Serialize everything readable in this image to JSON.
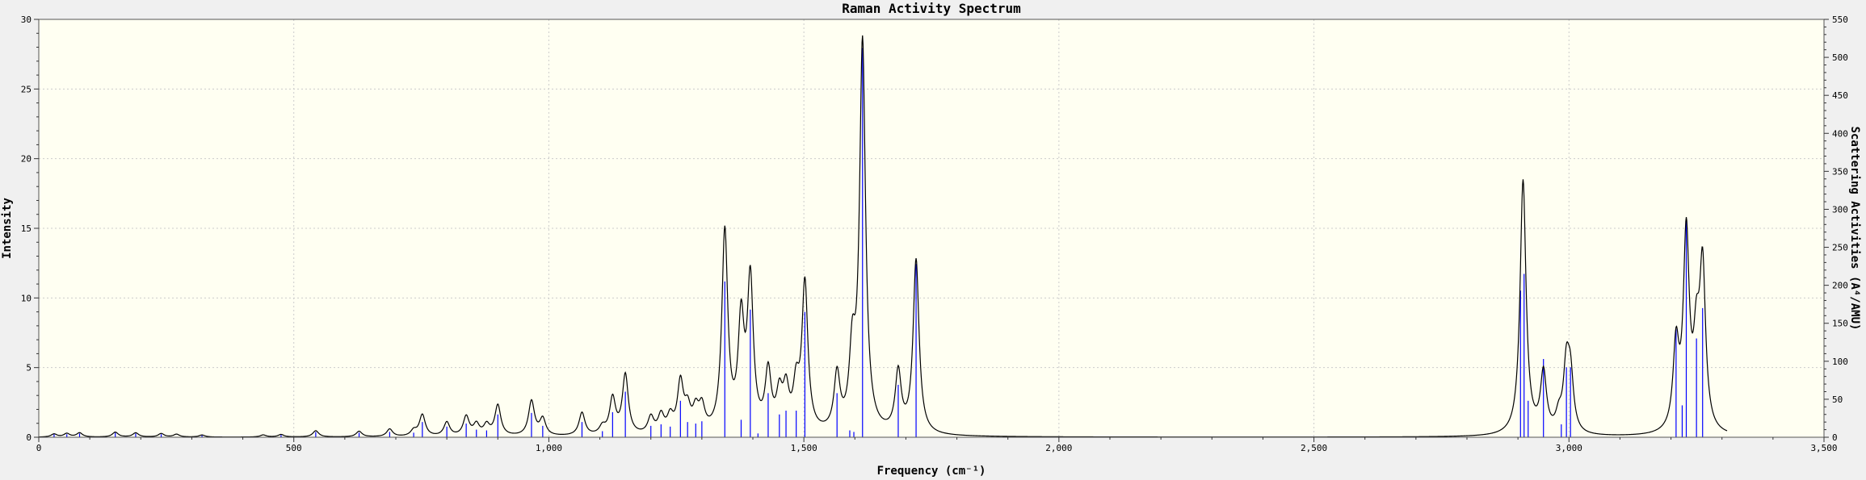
{
  "chart_data": {
    "type": "line",
    "title": "Raman Activity Spectrum",
    "xlabel": "Frequency (cm⁻¹)",
    "ylabel": "Intensity",
    "y2label": "Scattering Activities (A⁴/AMU)",
    "xlim": [
      0,
      3500
    ],
    "ylim": [
      0,
      30
    ],
    "y2lim": [
      0,
      550
    ],
    "x_ticks": [
      0,
      500,
      1000,
      1500,
      2000,
      2500,
      3000,
      3500
    ],
    "x_tick_labels": [
      "0",
      "500",
      "1,000",
      "1,500",
      "2,000",
      "2,500",
      "3,000",
      "3,500"
    ],
    "y_ticks": [
      0,
      5,
      10,
      15,
      20,
      25,
      30
    ],
    "y_tick_labels": [
      "0",
      "5",
      "10",
      "15",
      "20",
      "25",
      "30"
    ],
    "y2_ticks": [
      0,
      50,
      100,
      150,
      200,
      250,
      300,
      350,
      400,
      450,
      500,
      550
    ],
    "y2_tick_labels": [
      "0",
      "50",
      "100",
      "150",
      "200",
      "250",
      "300",
      "350",
      "400",
      "450",
      "500",
      "550"
    ],
    "grid": true,
    "colors": {
      "plot_background": "#fffff2",
      "spectrum_line": "#000000",
      "stick_lines": "#0000ff",
      "grid": "#cccccc",
      "page_background": "#f0f0f0"
    },
    "series": [
      {
        "kind": "broadened-spectrum",
        "axis": "left",
        "lorentzian_hwhm": 7,
        "peaks": [
          {
            "x": 30,
            "y": 0.22
          },
          {
            "x": 55,
            "y": 0.25
          },
          {
            "x": 80,
            "y": 0.3
          },
          {
            "x": 150,
            "y": 0.35
          },
          {
            "x": 190,
            "y": 0.3
          },
          {
            "x": 240,
            "y": 0.25
          },
          {
            "x": 270,
            "y": 0.2
          },
          {
            "x": 320,
            "y": 0.15
          },
          {
            "x": 440,
            "y": 0.15
          },
          {
            "x": 475,
            "y": 0.18
          },
          {
            "x": 543,
            "y": 0.45
          },
          {
            "x": 628,
            "y": 0.4
          },
          {
            "x": 688,
            "y": 0.55
          },
          {
            "x": 735,
            "y": 0.4
          },
          {
            "x": 752,
            "y": 1.55
          },
          {
            "x": 800,
            "y": 1.0
          },
          {
            "x": 838,
            "y": 1.4
          },
          {
            "x": 858,
            "y": 0.8
          },
          {
            "x": 878,
            "y": 0.75
          },
          {
            "x": 900,
            "y": 2.2
          },
          {
            "x": 966,
            "y": 2.5
          },
          {
            "x": 988,
            "y": 1.2
          },
          {
            "x": 1065,
            "y": 1.65
          },
          {
            "x": 1105,
            "y": 0.55
          },
          {
            "x": 1125,
            "y": 2.6
          },
          {
            "x": 1150,
            "y": 4.3
          },
          {
            "x": 1200,
            "y": 1.2
          },
          {
            "x": 1220,
            "y": 1.3
          },
          {
            "x": 1238,
            "y": 1.15
          },
          {
            "x": 1258,
            "y": 3.6
          },
          {
            "x": 1272,
            "y": 1.6
          },
          {
            "x": 1288,
            "y": 1.5
          },
          {
            "x": 1300,
            "y": 1.7
          },
          {
            "x": 1345,
            "y": 14.4
          },
          {
            "x": 1377,
            "y": 7.6
          },
          {
            "x": 1395,
            "y": 10.7
          },
          {
            "x": 1430,
            "y": 4.2
          },
          {
            "x": 1452,
            "y": 2.5
          },
          {
            "x": 1465,
            "y": 2.8
          },
          {
            "x": 1485,
            "y": 3.0
          },
          {
            "x": 1502,
            "y": 10.6
          },
          {
            "x": 1565,
            "y": 4.0
          },
          {
            "x": 1595,
            "y": 5.2
          },
          {
            "x": 1615,
            "y": 28.0
          },
          {
            "x": 1685,
            "y": 4.3
          },
          {
            "x": 1720,
            "y": 12.5
          },
          {
            "x": 2910,
            "y": 18.3
          },
          {
            "x": 2950,
            "y": 4.3
          },
          {
            "x": 2980,
            "y": 1.1
          },
          {
            "x": 2995,
            "y": 4.6
          },
          {
            "x": 3003,
            "y": 3.8
          },
          {
            "x": 3210,
            "y": 6.0
          },
          {
            "x": 3230,
            "y": 14.0
          },
          {
            "x": 3250,
            "y": 5.5
          },
          {
            "x": 3262,
            "y": 11.5
          }
        ]
      },
      {
        "kind": "stick-lines",
        "axis": "right",
        "sticks": [
          {
            "x": 30,
            "y": 4
          },
          {
            "x": 55,
            "y": 4
          },
          {
            "x": 80,
            "y": 5
          },
          {
            "x": 150,
            "y": 6
          },
          {
            "x": 190,
            "y": 5
          },
          {
            "x": 240,
            "y": 4
          },
          {
            "x": 320,
            "y": 3
          },
          {
            "x": 475,
            "y": 3
          },
          {
            "x": 543,
            "y": 7
          },
          {
            "x": 628,
            "y": 6
          },
          {
            "x": 688,
            "y": 7
          },
          {
            "x": 735,
            "y": 6
          },
          {
            "x": 752,
            "y": 20
          },
          {
            "x": 800,
            "y": 14
          },
          {
            "x": 838,
            "y": 18
          },
          {
            "x": 858,
            "y": 10
          },
          {
            "x": 878,
            "y": 9
          },
          {
            "x": 900,
            "y": 30
          },
          {
            "x": 966,
            "y": 32
          },
          {
            "x": 988,
            "y": 15
          },
          {
            "x": 1065,
            "y": 20
          },
          {
            "x": 1105,
            "y": 8
          },
          {
            "x": 1125,
            "y": 33
          },
          {
            "x": 1150,
            "y": 60
          },
          {
            "x": 1200,
            "y": 15
          },
          {
            "x": 1220,
            "y": 17
          },
          {
            "x": 1238,
            "y": 14
          },
          {
            "x": 1258,
            "y": 48
          },
          {
            "x": 1272,
            "y": 20
          },
          {
            "x": 1288,
            "y": 18
          },
          {
            "x": 1300,
            "y": 21
          },
          {
            "x": 1345,
            "y": 205
          },
          {
            "x": 1377,
            "y": 23
          },
          {
            "x": 1395,
            "y": 168
          },
          {
            "x": 1410,
            "y": 5
          },
          {
            "x": 1430,
            "y": 58
          },
          {
            "x": 1452,
            "y": 30
          },
          {
            "x": 1465,
            "y": 35
          },
          {
            "x": 1485,
            "y": 35
          },
          {
            "x": 1502,
            "y": 165
          },
          {
            "x": 1565,
            "y": 58
          },
          {
            "x": 1590,
            "y": 9
          },
          {
            "x": 1598,
            "y": 7
          },
          {
            "x": 1615,
            "y": 512
          },
          {
            "x": 1685,
            "y": 69
          },
          {
            "x": 1720,
            "y": 228
          },
          {
            "x": 2905,
            "y": 193
          },
          {
            "x": 2912,
            "y": 215
          },
          {
            "x": 2920,
            "y": 48
          },
          {
            "x": 2950,
            "y": 103
          },
          {
            "x": 2985,
            "y": 17
          },
          {
            "x": 2995,
            "y": 92
          },
          {
            "x": 3003,
            "y": 92
          },
          {
            "x": 3210,
            "y": 142
          },
          {
            "x": 3222,
            "y": 42
          },
          {
            "x": 3230,
            "y": 287
          },
          {
            "x": 3250,
            "y": 130
          },
          {
            "x": 3262,
            "y": 170
          }
        ]
      }
    ]
  }
}
